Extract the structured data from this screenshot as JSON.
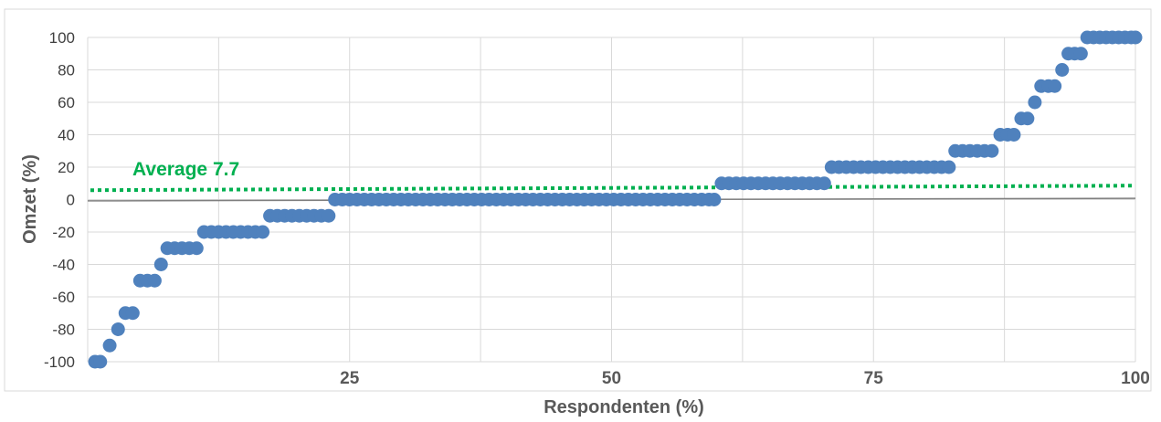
{
  "chart_data": {
    "type": "scatter",
    "xlabel": "Respondenten (%)",
    "ylabel": "Omzet (%)",
    "xlim": [
      0,
      100
    ],
    "ylim": [
      -100,
      100
    ],
    "x_ticks": [
      25,
      50,
      75,
      100
    ],
    "y_ticks": [
      -100,
      -80,
      -60,
      -40,
      -20,
      0,
      20,
      40,
      60,
      80,
      100
    ],
    "grid": true,
    "average": {
      "label": "Average 7.7",
      "value": 7.7,
      "color": "#00b050"
    },
    "series": [
      {
        "color": "#4f81bd",
        "points": [
          [
            0.7,
            -100
          ],
          [
            1.2,
            -100
          ],
          [
            2.1,
            -90
          ],
          [
            2.9,
            -80
          ],
          [
            3.6,
            -70
          ],
          [
            4.3,
            -70
          ],
          [
            5.0,
            -50
          ],
          [
            5.7,
            -50
          ],
          [
            6.4,
            -50
          ],
          [
            7.0,
            -40
          ],
          [
            7.6,
            -30
          ],
          [
            8.3,
            -30
          ],
          [
            9.0,
            -30
          ],
          [
            9.7,
            -30
          ],
          [
            10.4,
            -30
          ],
          [
            11.1,
            -20
          ],
          [
            11.8,
            -20
          ],
          [
            12.5,
            -20
          ],
          [
            13.2,
            -20
          ],
          [
            13.9,
            -20
          ],
          [
            14.6,
            -20
          ],
          [
            15.3,
            -20
          ],
          [
            16.0,
            -20
          ],
          [
            16.7,
            -20
          ],
          [
            17.4,
            -10
          ],
          [
            18.1,
            -10
          ],
          [
            18.8,
            -10
          ],
          [
            19.5,
            -10
          ],
          [
            20.2,
            -10
          ],
          [
            20.9,
            -10
          ],
          [
            21.6,
            -10
          ],
          [
            22.3,
            -10
          ],
          [
            23.0,
            -10
          ],
          [
            23.6,
            0
          ],
          [
            24.3,
            0
          ],
          [
            25.0,
            0
          ],
          [
            25.7,
            0
          ],
          [
            26.4,
            0
          ],
          [
            27.1,
            0
          ],
          [
            27.8,
            0
          ],
          [
            28.5,
            0
          ],
          [
            29.2,
            0
          ],
          [
            29.9,
            0
          ],
          [
            30.6,
            0
          ],
          [
            31.3,
            0
          ],
          [
            32.0,
            0
          ],
          [
            32.7,
            0
          ],
          [
            33.4,
            0
          ],
          [
            34.1,
            0
          ],
          [
            34.8,
            0
          ],
          [
            35.5,
            0
          ],
          [
            36.2,
            0
          ],
          [
            36.9,
            0
          ],
          [
            37.6,
            0
          ],
          [
            38.3,
            0
          ],
          [
            39.0,
            0
          ],
          [
            39.7,
            0
          ],
          [
            40.4,
            0
          ],
          [
            41.1,
            0
          ],
          [
            41.8,
            0
          ],
          [
            42.5,
            0
          ],
          [
            43.2,
            0
          ],
          [
            43.9,
            0
          ],
          [
            44.6,
            0
          ],
          [
            45.3,
            0
          ],
          [
            46.0,
            0
          ],
          [
            46.7,
            0
          ],
          [
            47.4,
            0
          ],
          [
            48.1,
            0
          ],
          [
            48.8,
            0
          ],
          [
            49.5,
            0
          ],
          [
            50.2,
            0
          ],
          [
            50.9,
            0
          ],
          [
            51.6,
            0
          ],
          [
            52.3,
            0
          ],
          [
            53.0,
            0
          ],
          [
            53.7,
            0
          ],
          [
            54.4,
            0
          ],
          [
            55.1,
            0
          ],
          [
            55.8,
            0
          ],
          [
            56.5,
            0
          ],
          [
            57.2,
            0
          ],
          [
            57.9,
            0
          ],
          [
            58.6,
            0
          ],
          [
            59.3,
            0
          ],
          [
            59.8,
            0
          ],
          [
            60.5,
            10
          ],
          [
            61.2,
            10
          ],
          [
            61.9,
            10
          ],
          [
            62.6,
            10
          ],
          [
            63.3,
            10
          ],
          [
            64.0,
            10
          ],
          [
            64.7,
            10
          ],
          [
            65.4,
            10
          ],
          [
            66.1,
            10
          ],
          [
            66.8,
            10
          ],
          [
            67.5,
            10
          ],
          [
            68.2,
            10
          ],
          [
            68.9,
            10
          ],
          [
            69.6,
            10
          ],
          [
            70.3,
            10
          ],
          [
            71.0,
            20
          ],
          [
            71.7,
            20
          ],
          [
            72.4,
            20
          ],
          [
            73.1,
            20
          ],
          [
            73.8,
            20
          ],
          [
            74.5,
            20
          ],
          [
            75.2,
            20
          ],
          [
            75.9,
            20
          ],
          [
            76.6,
            20
          ],
          [
            77.3,
            20
          ],
          [
            78.0,
            20
          ],
          [
            78.7,
            20
          ],
          [
            79.4,
            20
          ],
          [
            80.1,
            20
          ],
          [
            80.8,
            20
          ],
          [
            81.5,
            20
          ],
          [
            82.2,
            20
          ],
          [
            82.8,
            30
          ],
          [
            83.5,
            30
          ],
          [
            84.2,
            30
          ],
          [
            84.9,
            30
          ],
          [
            85.6,
            30
          ],
          [
            86.3,
            30
          ],
          [
            87.1,
            40
          ],
          [
            87.8,
            40
          ],
          [
            88.4,
            40
          ],
          [
            89.1,
            50
          ],
          [
            89.7,
            50
          ],
          [
            90.4,
            60
          ],
          [
            91.0,
            70
          ],
          [
            91.7,
            70
          ],
          [
            92.3,
            70
          ],
          [
            93.0,
            80
          ],
          [
            93.6,
            90
          ],
          [
            94.2,
            90
          ],
          [
            94.8,
            90
          ],
          [
            95.4,
            100
          ],
          [
            96.0,
            100
          ],
          [
            96.6,
            100
          ],
          [
            97.2,
            100
          ],
          [
            97.8,
            100
          ],
          [
            98.4,
            100
          ],
          [
            99.0,
            100
          ],
          [
            99.6,
            100
          ],
          [
            100.0,
            100
          ]
        ]
      }
    ]
  }
}
